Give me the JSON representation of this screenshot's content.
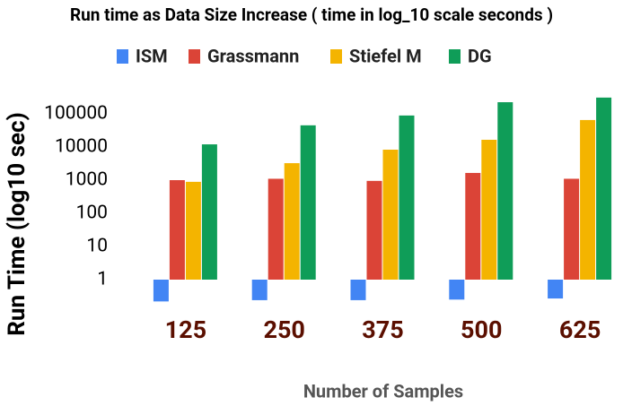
{
  "chart_data": {
    "type": "bar",
    "title": "Run time as Data Size Increase ( time in log_10 scale seconds )",
    "x_label": "Number of Samples",
    "y_label": "Run Time (log10 sec)",
    "categories": [
      "125",
      "250",
      "375",
      "500",
      "625"
    ],
    "series": [
      {
        "name": "ISM",
        "color": "#4285f4",
        "values": [
          0.22,
          0.24,
          0.24,
          0.25,
          0.27
        ]
      },
      {
        "name": "Grassmann",
        "color": "#db4437",
        "values": [
          1000,
          1100,
          950,
          1650,
          1100
        ]
      },
      {
        "name": "Stiefel M",
        "color": "#f4b400",
        "values": [
          890,
          3250,
          8300,
          16500,
          65000
        ]
      },
      {
        "name": "DG",
        "color": "#0f9d58",
        "values": [
          12000,
          45000,
          89000,
          224000,
          309000
        ]
      }
    ],
    "log_scale": true,
    "ylim": [
      0.2,
      400000
    ],
    "yticks": [
      1,
      10,
      100,
      1000,
      10000,
      100000
    ],
    "grid": false
  }
}
